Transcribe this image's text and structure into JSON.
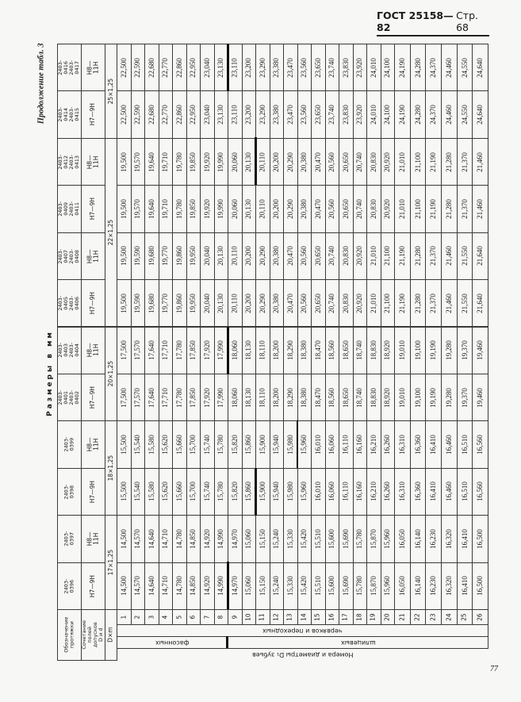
{
  "header": {
    "standard": "ГОСТ 25158—82",
    "page_label": "Стр. 68",
    "continuation": "Продолжение табл. 3",
    "units": "Размеры в мм",
    "page_number": "77"
  },
  "table": {
    "row_labels": {
      "designation": "Обозначение протяжки",
      "tolerance": "Сочетание полей допусков D и d",
      "dxm": "D×m"
    },
    "side_labels": {
      "shaped": "фасонных",
      "worm": "червяков и переходных",
      "spline": "шлицевых",
      "caption": "Номера и диаметры D₁ зубьев"
    },
    "row_numbers": [
      "1",
      "2",
      "3",
      "4",
      "5",
      "6",
      "7",
      "8",
      "9",
      "10",
      "11",
      "12",
      "13",
      "14",
      "15",
      "16",
      "17",
      "18",
      "19",
      "20",
      "21",
      "22",
      "23",
      "24",
      "25",
      "26"
    ],
    "dxm_groups": [
      {
        "label": "17×1,25",
        "span": 2
      },
      {
        "label": "18×1,25",
        "span": 2
      },
      {
        "label": "20×1,25",
        "span": 2
      },
      {
        "label": "22×1,25",
        "span": 4
      },
      {
        "label": "25×1,25",
        "span": 2
      }
    ],
    "columns": [
      {
        "designation": "2403-0396",
        "tolerance": "H7—9H",
        "values": [
          "14,500",
          "14,570",
          "14,640",
          "14,710",
          "14,780",
          "14,850",
          "14,920",
          "14,990",
          "14,970",
          "15,060",
          "15,150",
          "15,240",
          "15,330",
          "15,420",
          "15,510",
          "15,600",
          "15,690",
          "15,780",
          "15,870",
          "15,960",
          "16,050",
          "16,140",
          "16,230",
          "16,320",
          "16,410",
          "16,500"
        ]
      },
      {
        "designation": "2403-0397",
        "tolerance": "H8—11H",
        "values": [
          "14,500",
          "14,570",
          "14,640",
          "14,710",
          "14,780",
          "14,850",
          "14,920",
          "14,990",
          "14,970",
          "15,060",
          "15,150",
          "15,240",
          "15,330",
          "15,420",
          "15,510",
          "15,600",
          "15,690",
          "15,780",
          "15,870",
          "15,960",
          "16,050",
          "16,140",
          "16,230",
          "16,320",
          "16,410",
          "16,500"
        ]
      },
      {
        "designation": "2403-0398",
        "tolerance": "H7—9H",
        "values": [
          "15,500",
          "15,540",
          "15,580",
          "15,620",
          "15,660",
          "15,700",
          "15,740",
          "15,780",
          "15,820",
          "15,860",
          "15,900",
          "15,940",
          "15,980",
          "15,960",
          "16,010",
          "16,060",
          "16,110",
          "16,160",
          "16,210",
          "16,260",
          "16,310",
          "16,360",
          "16,410",
          "16,460",
          "16,510",
          "16,560"
        ]
      },
      {
        "designation": "2403-0399",
        "tolerance": "H8—11H",
        "values": [
          "15,500",
          "15,540",
          "15,580",
          "15,620",
          "15,660",
          "15,700",
          "15,740",
          "15,780",
          "15,820",
          "15,860",
          "15,900",
          "15,940",
          "15,980",
          "15,960",
          "16,010",
          "16,060",
          "16,110",
          "16,160",
          "16,210",
          "16,260",
          "16,310",
          "16,360",
          "16,410",
          "16,460",
          "16,510",
          "16,560"
        ]
      },
      {
        "designation": "2403-0401\n2403-0402",
        "tolerance": "H7—9H",
        "values": [
          "17,500",
          "17,570",
          "17,640",
          "17,710",
          "17,780",
          "17,850",
          "17,920",
          "17,990",
          "18,060",
          "18,130",
          "18,110",
          "18,200",
          "18,290",
          "18,380",
          "18,470",
          "18,560",
          "18,650",
          "18,740",
          "18,830",
          "18,920",
          "19,010",
          "19,100",
          "19,190",
          "19,280",
          "19,370",
          "19,460"
        ]
      },
      {
        "designation": "2403-0403\n2403-0404",
        "tolerance": "H8—11H",
        "values": [
          "17,500",
          "17,570",
          "17,640",
          "17,710",
          "17,780",
          "17,850",
          "17,920",
          "17,990",
          "18,060",
          "18,130",
          "18,110",
          "18,200",
          "18,290",
          "18,380",
          "18,470",
          "18,560",
          "18,650",
          "18,740",
          "18,830",
          "18,920",
          "19,010",
          "19,100",
          "19,190",
          "19,280",
          "19,370",
          "19,460"
        ]
      },
      {
        "designation": "2403-0405\n2403-0406",
        "tolerance": "H7—9H",
        "values": [
          "19,500",
          "19,590",
          "19,680",
          "19,770",
          "19,860",
          "19,950",
          "20,040",
          "20,130",
          "20,110",
          "20,200",
          "20,290",
          "20,380",
          "20,470",
          "20,560",
          "20,650",
          "20,740",
          "20,830",
          "20,920",
          "21,010",
          "21,100",
          "21,190",
          "21,280",
          "21,370",
          "21,460",
          "21,550",
          "21,640"
        ]
      },
      {
        "designation": "2403-0407\n2403-0408",
        "tolerance": "H8—11H",
        "values": [
          "19,500",
          "19,590",
          "19,680",
          "19,770",
          "19,860",
          "19,950",
          "20,040",
          "20,130",
          "20,110",
          "20,200",
          "20,290",
          "20,380",
          "20,470",
          "20,560",
          "20,650",
          "20,740",
          "20,830",
          "20,920",
          "21,010",
          "21,100",
          "21,190",
          "21,280",
          "21,370",
          "21,460",
          "21,550",
          "21,640"
        ]
      },
      {
        "designation": "2403-0409\n2403-0411",
        "tolerance": "H7—9H",
        "values": [
          "19,500",
          "19,570",
          "19,640",
          "19,710",
          "19,780",
          "19,850",
          "19,920",
          "19,990",
          "20,060",
          "20,130",
          "20,110",
          "20,200",
          "20,290",
          "20,380",
          "20,470",
          "20,560",
          "20,650",
          "20,740",
          "20,830",
          "20,920",
          "21,010",
          "21,100",
          "21,190",
          "21,280",
          "21,370",
          "21,460"
        ]
      },
      {
        "designation": "2403-0412\n2403-0413",
        "tolerance": "H8—11H",
        "values": [
          "19,500",
          "19,570",
          "19,640",
          "19,710",
          "19,780",
          "19,850",
          "19,920",
          "19,990",
          "20,060",
          "20,130",
          "20,110",
          "20,200",
          "20,290",
          "20,380",
          "20,470",
          "20,560",
          "20,650",
          "20,740",
          "20,830",
          "20,920",
          "21,010",
          "21,100",
          "21,190",
          "21,280",
          "21,370",
          "21,460"
        ]
      },
      {
        "designation": "2403-0414\n2403-0415",
        "tolerance": "H7—9H",
        "values": [
          "22,500",
          "22,590",
          "22,680",
          "22,770",
          "22,860",
          "22,950",
          "23,040",
          "23,130",
          "23,110",
          "23,200",
          "23,290",
          "23,380",
          "23,470",
          "23,560",
          "23,650",
          "23,740",
          "23,830",
          "23,920",
          "24,010",
          "24,100",
          "24,190",
          "24,280",
          "24,370",
          "24,460",
          "24,550",
          "24,640"
        ]
      },
      {
        "designation": "2403-0416\n2403-0417",
        "tolerance": "H8—11H",
        "values": [
          "22,500",
          "22,590",
          "22,680",
          "22,770",
          "22,860",
          "22,950",
          "23,040",
          "23,130",
          "23,110",
          "23,200",
          "23,290",
          "23,380",
          "23,470",
          "23,560",
          "23,650",
          "23,740",
          "23,830",
          "23,920",
          "24,010",
          "24,100",
          "24,190",
          "24,280",
          "24,370",
          "24,460",
          "24,550",
          "24,640"
        ]
      }
    ]
  }
}
